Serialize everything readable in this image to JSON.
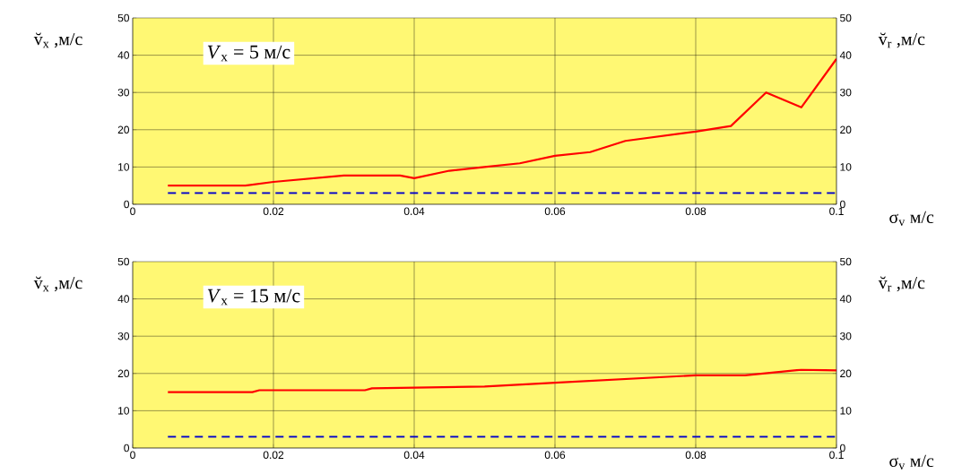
{
  "chart_data": [
    {
      "type": "line",
      "xlabel": "σ$_{v}$ м/с",
      "ylabel": "v̆$_{x}$ ,м/с",
      "y2label": "v̆$_{r}$ ,м/с",
      "annotations": [
        "*V*$_{x}$ = 5 м/с"
      ],
      "xlim": [
        0,
        0.1
      ],
      "xticks": [
        0,
        0.02,
        0.04,
        0.06,
        0.08,
        0.1
      ],
      "ylim": [
        0,
        50
      ],
      "yticks": [
        0,
        10,
        20,
        30,
        40,
        50
      ],
      "y2lim": [
        0,
        50
      ],
      "y2ticks": [
        0,
        10,
        20,
        30,
        40,
        50
      ],
      "grid": true,
      "series": [
        {
          "color": "#ff0000",
          "line_style": "solid",
          "x": [
            0.005,
            0.016,
            0.02,
            0.03,
            0.038,
            0.04,
            0.045,
            0.05,
            0.055,
            0.06,
            0.065,
            0.07,
            0.08,
            0.085,
            0.09,
            0.095,
            0.1
          ],
          "values": [
            5,
            5,
            6,
            7.7,
            7.7,
            7,
            9,
            10,
            11,
            13,
            14,
            17,
            19.5,
            21,
            30,
            26,
            39
          ]
        },
        {
          "color": "#0000cc",
          "line_style": "dashed",
          "axis": "y2",
          "x": [
            0.005,
            0.1
          ],
          "values": [
            3,
            3
          ]
        }
      ]
    },
    {
      "type": "line",
      "xlabel": "σ$_{v}$ м/с",
      "ylabel": "v̆$_{x}$ ,м/с",
      "y2label": "v̆$_{r}$ ,м/с",
      "annotations": [
        "*V*$_{x}$ = 15 м/с"
      ],
      "xlim": [
        0,
        0.1
      ],
      "xticks": [
        0,
        0.02,
        0.04,
        0.06,
        0.08,
        0.1
      ],
      "ylim": [
        0,
        50
      ],
      "yticks": [
        0,
        10,
        20,
        30,
        40,
        50
      ],
      "y2lim": [
        0,
        50
      ],
      "y2ticks": [
        0,
        10,
        20,
        30,
        40,
        50
      ],
      "grid": true,
      "series": [
        {
          "color": "#ff0000",
          "line_style": "solid",
          "x": [
            0.005,
            0.017,
            0.018,
            0.033,
            0.034,
            0.05,
            0.06,
            0.07,
            0.08,
            0.087,
            0.095,
            0.1
          ],
          "values": [
            15,
            15,
            15.5,
            15.5,
            16,
            16.5,
            17.5,
            18.5,
            19.5,
            19.5,
            21,
            20.8
          ]
        },
        {
          "color": "#0000cc",
          "line_style": "dashed",
          "axis": "y2",
          "x": [
            0.005,
            0.1
          ],
          "values": [
            3,
            3
          ]
        }
      ]
    }
  ]
}
